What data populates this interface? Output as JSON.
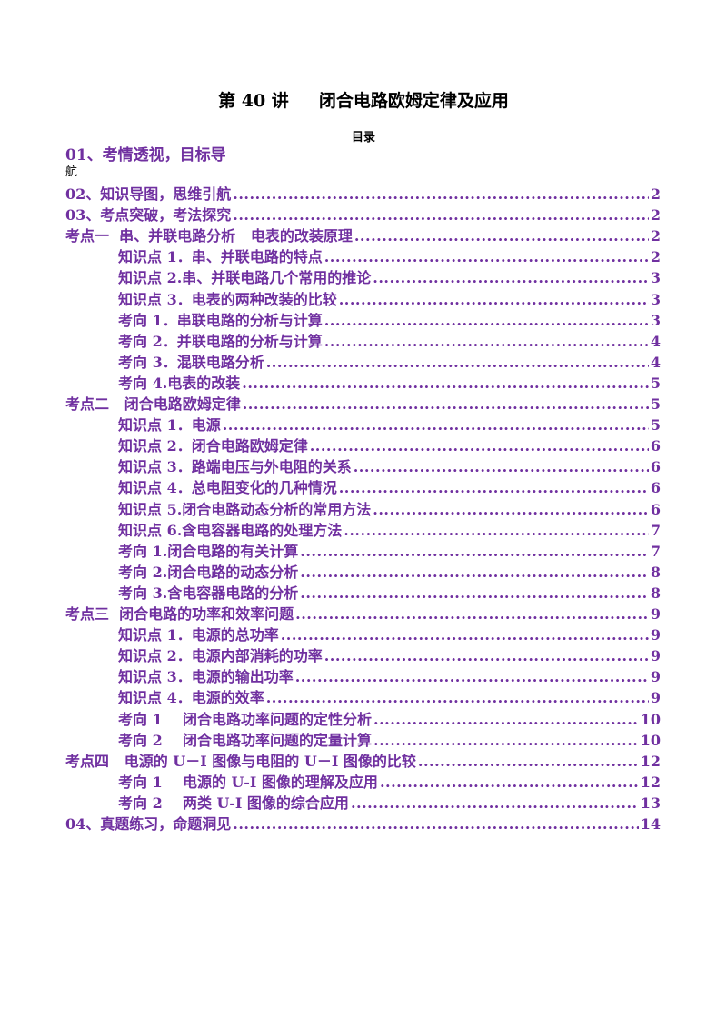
{
  "document": {
    "title": "第 40 讲     闭合电路欧姆定律及应用",
    "toc_heading": "目录",
    "first_entry_label": "01、考情透视，目标导",
    "first_entry_wrap": "航"
  },
  "toc": [
    {
      "label": "02、知识导图，思维引航",
      "page": "2",
      "level": 1
    },
    {
      "label": "03、考点突破，考法探究",
      "page": "2",
      "level": 1
    },
    {
      "label": "考点一  串、并联电路分析   电表的改装原理",
      "page": "2",
      "level": 1
    },
    {
      "label": "知识点 1．串、并联电路的特点",
      "page": "2",
      "level": 2
    },
    {
      "label": "知识点 2.串、并联电路几个常用的推论",
      "page": "3",
      "level": 2
    },
    {
      "label": "知识点 3．电表的两种改装的比较",
      "page": "3",
      "level": 2
    },
    {
      "label": "考向 1．串联电路的分析与计算",
      "page": "3",
      "level": 2
    },
    {
      "label": "考向 2．并联电路的分析与计算",
      "page": "4",
      "level": 2
    },
    {
      "label": "考向 3．混联电路分析",
      "page": "4",
      "level": 2
    },
    {
      "label": "考向 4.电表的改装",
      "page": "5",
      "level": 2
    },
    {
      "label": "考点二   闭合电路欧姆定律",
      "page": "5",
      "level": 1
    },
    {
      "label": "知识点 1．电源",
      "page": "5",
      "level": 2
    },
    {
      "label": "知识点 2．闭合电路欧姆定律",
      "page": "6",
      "level": 2
    },
    {
      "label": "知识点 3．路端电压与外电阻的关系",
      "page": "6",
      "level": 2
    },
    {
      "label": "知识点 4．总电阻变化的几种情况",
      "page": "6",
      "level": 2
    },
    {
      "label": "知识点 5.闭合电路动态分析的常用方法",
      "page": "6",
      "level": 2
    },
    {
      "label": "知识点 6.含电容器电路的处理方法",
      "page": "7",
      "level": 2
    },
    {
      "label": "考向 1.闭合电路的有关计算",
      "page": "7",
      "level": 2
    },
    {
      "label": "考向 2.闭合电路的动态分析",
      "page": "8",
      "level": 2
    },
    {
      "label": "考向 3.含电容器电路的分析",
      "page": "8",
      "level": 2
    },
    {
      "label": "考点三  闭合电路的功率和效率问题",
      "page": "9",
      "level": 1
    },
    {
      "label": "知识点 1．电源的总功率",
      "page": "9",
      "level": 2
    },
    {
      "label": "知识点 2．电源内部消耗的功率",
      "page": "9",
      "level": 2
    },
    {
      "label": "知识点 3．电源的输出功率",
      "page": "9",
      "level": 2
    },
    {
      "label": "知识点 4．电源的效率",
      "page": "9",
      "level": 2
    },
    {
      "label": "考向 1    闭合电路功率问题的定性分析",
      "page": "10",
      "level": 2
    },
    {
      "label": "考向 2    闭合电路功率问题的定量计算",
      "page": "10",
      "level": 2
    },
    {
      "label": "考点四   电源的 U－I 图像与电阻的 U－I 图像的比较",
      "page": "12",
      "level": 1
    },
    {
      "label": "考向 1    电源的 U-I 图像的理解及应用",
      "page": "12",
      "level": 2
    },
    {
      "label": "考向 2    两类 U-I 图像的综合应用",
      "page": "13",
      "level": 2
    },
    {
      "label": "04、真题练习，命题洞见",
      "page": "14",
      "level": 1
    }
  ]
}
